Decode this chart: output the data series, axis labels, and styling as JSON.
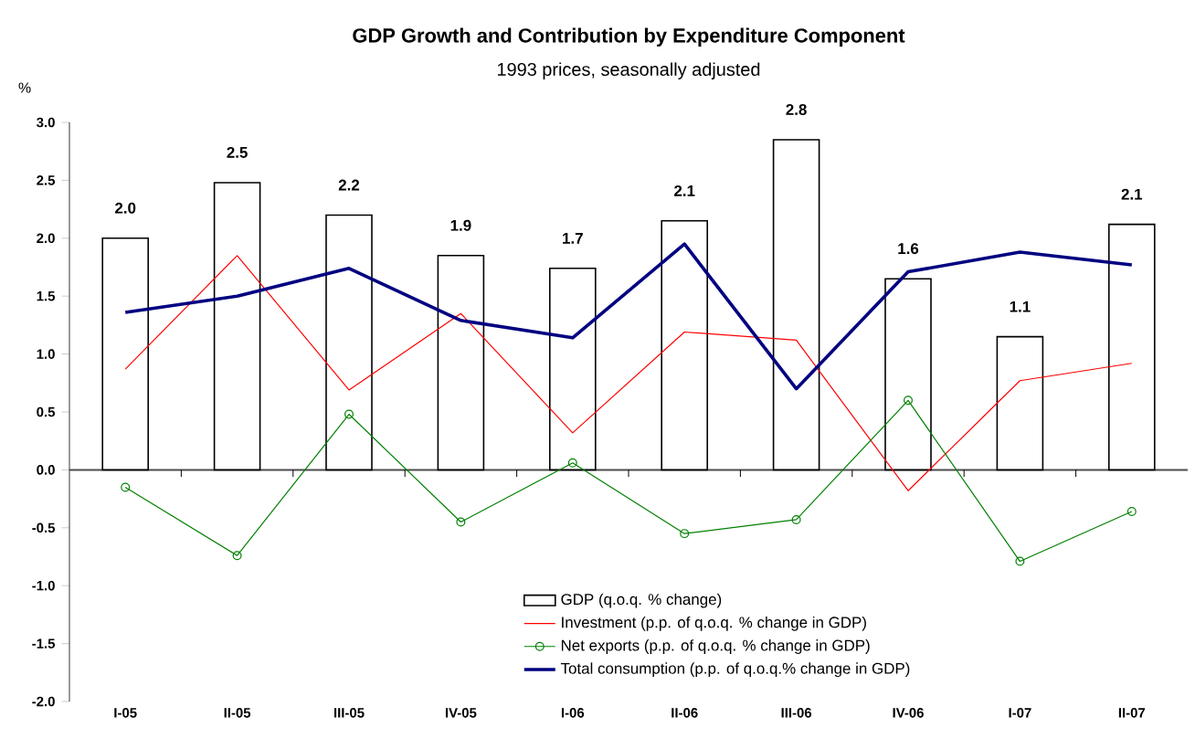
{
  "chart_data": {
    "type": "bar",
    "title": "GDP Growth and Contribution by Expenditure Component",
    "subtitle": "1993 prices, seasonally adjusted",
    "ylabel": "%",
    "categories": [
      "I-05",
      "II-05",
      "III-05",
      "IV-05",
      "I-06",
      "II-06",
      "III-06",
      "IV-06",
      "I-07",
      "II-07"
    ],
    "series": [
      {
        "name": "GDP (q.o.q. % change)",
        "color": "#ffffff",
        "values": [
          2.0,
          2.48,
          2.2,
          1.85,
          1.74,
          2.15,
          2.85,
          1.65,
          1.15,
          2.12
        ],
        "value_labels": [
          "2.0",
          "2.5",
          "2.2",
          "1.9",
          "1.7",
          "2.1",
          "2.8",
          "1.6",
          "1.1",
          "2.1"
        ]
      },
      {
        "name": "Investment (p.p. of q.o.q. % change in GDP)",
        "type": "line",
        "color": "#ff0000",
        "marker": "none",
        "values": [
          0.87,
          1.85,
          0.69,
          1.35,
          0.32,
          1.19,
          1.12,
          -0.18,
          0.77,
          0.92
        ]
      },
      {
        "name": "Net exports (p.p. of q.o.q. % change in GDP)",
        "type": "line",
        "color": "#008000",
        "marker": "circle",
        "values": [
          -0.15,
          -0.74,
          0.48,
          -0.45,
          0.06,
          -0.55,
          -0.43,
          0.6,
          -0.79,
          -0.36
        ]
      },
      {
        "name": "Total consumption (p.p. of q.o.q.% change in GDP)",
        "type": "line",
        "color": "#000080",
        "marker": "none",
        "values": [
          1.36,
          1.5,
          1.74,
          1.29,
          1.14,
          1.95,
          0.7,
          1.71,
          1.88,
          1.77
        ]
      }
    ],
    "ylim": [
      -2.0,
      3.0
    ],
    "yticks": [
      {
        "value": -2.0,
        "label": "-2.0"
      },
      {
        "value": -1.5,
        "label": "-1.5"
      },
      {
        "value": -1.0,
        "label": "-1.0"
      },
      {
        "value": -0.5,
        "label": "-0.5"
      },
      {
        "value": 0,
        "label": "0.0"
      },
      {
        "value": 0.5,
        "label": "0.5"
      },
      {
        "value": 1.0,
        "label": "1.0"
      },
      {
        "value": 1.5,
        "label": "1.5"
      },
      {
        "value": 2.0,
        "label": "2.0"
      },
      {
        "value": 2.5,
        "label": "2.5"
      },
      {
        "value": 3.0,
        "label": "3.0"
      }
    ],
    "legend": "bottom"
  }
}
